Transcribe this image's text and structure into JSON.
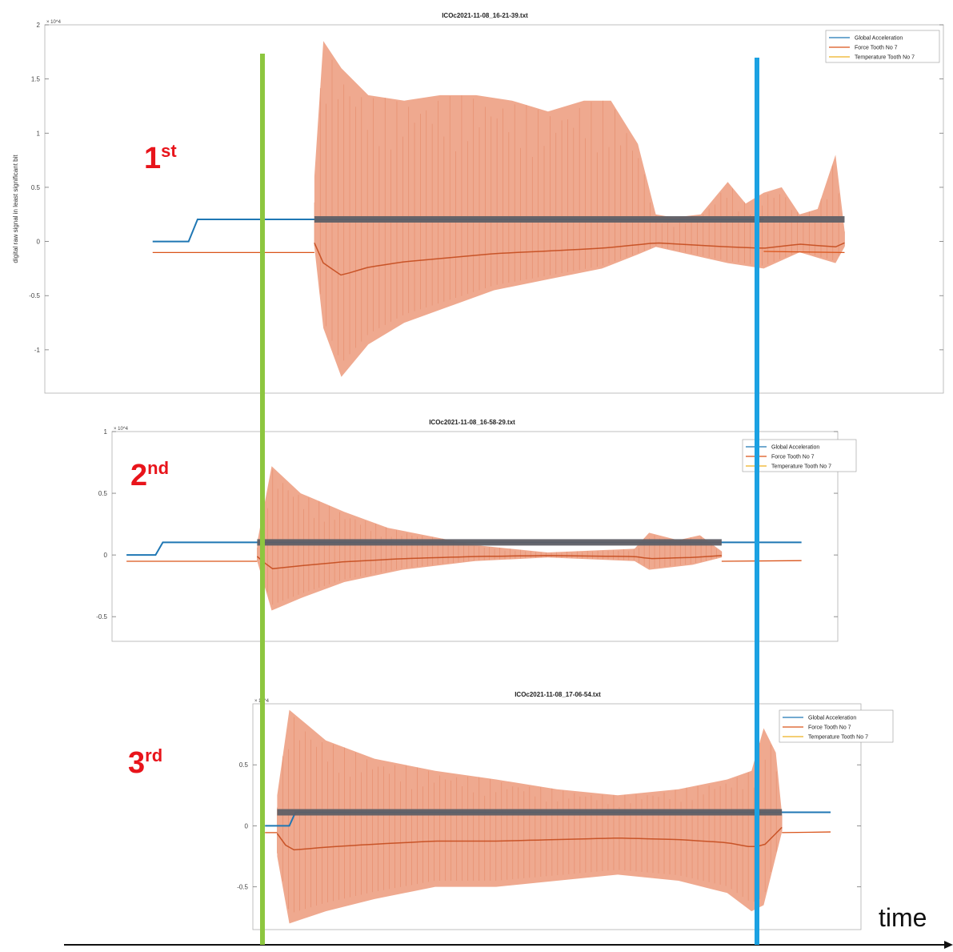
{
  "chart_data": [
    {
      "type": "line",
      "title": "ICOc2021-11-08_16-21-39.txt",
      "run_label": "1st",
      "ylabel": "digital raw signal in least significant bit",
      "exponent": "× 10^4",
      "yticks": [
        "2",
        "1.5",
        "1",
        "0.5",
        "0",
        "-0.5",
        "-1"
      ],
      "ylim": [
        -1.4,
        2.0
      ],
      "y_scale": 10000,
      "legend_position": "top-right",
      "series": [
        {
          "name": "Global Acceleration",
          "color": "#1f77b4"
        },
        {
          "name": "Force Tooth No 7",
          "color": "#d95319"
        },
        {
          "name": "Temperature Tooth No 7",
          "color": "#edb120"
        }
      ],
      "force_envelope": {
        "upper": [
          [
            0.3,
            0.6
          ],
          [
            0.31,
            1.85
          ],
          [
            0.33,
            1.6
          ],
          [
            0.36,
            1.35
          ],
          [
            0.4,
            1.3
          ],
          [
            0.44,
            1.35
          ],
          [
            0.48,
            1.35
          ],
          [
            0.52,
            1.3
          ],
          [
            0.56,
            1.2
          ],
          [
            0.6,
            1.3
          ],
          [
            0.63,
            1.3
          ],
          [
            0.66,
            0.9
          ],
          [
            0.68,
            0.25
          ],
          [
            0.7,
            0.22
          ],
          [
            0.73,
            0.25
          ],
          [
            0.76,
            0.55
          ],
          [
            0.78,
            0.35
          ],
          [
            0.8,
            0.45
          ],
          [
            0.82,
            0.5
          ],
          [
            0.84,
            0.25
          ],
          [
            0.86,
            0.3
          ],
          [
            0.88,
            0.8
          ],
          [
            0.89,
            0.1
          ]
        ],
        "lower": [
          [
            0.3,
            -0.05
          ],
          [
            0.31,
            -0.8
          ],
          [
            0.33,
            -1.25
          ],
          [
            0.36,
            -0.95
          ],
          [
            0.4,
            -0.75
          ],
          [
            0.45,
            -0.6
          ],
          [
            0.5,
            -0.45
          ],
          [
            0.56,
            -0.35
          ],
          [
            0.62,
            -0.25
          ],
          [
            0.66,
            -0.12
          ],
          [
            0.68,
            -0.05
          ],
          [
            0.76,
            -0.2
          ],
          [
            0.8,
            -0.25
          ],
          [
            0.84,
            -0.1
          ],
          [
            0.88,
            -0.2
          ],
          [
            0.89,
            -0.05
          ]
        ]
      }
    },
    {
      "type": "line",
      "title": "ICOc2021-11-08_16-58-29.txt",
      "run_label": "2nd",
      "exponent": "× 10^4",
      "yticks": [
        "1",
        "0.5",
        "0",
        "-0.5"
      ],
      "ylim": [
        -0.7,
        1.0
      ],
      "y_scale": 10000,
      "legend_position": "top-right",
      "series": [
        {
          "name": "Global Acceleration",
          "color": "#1f77b4"
        },
        {
          "name": "Force Tooth No 7",
          "color": "#d95319"
        },
        {
          "name": "Temperature Tooth No 7",
          "color": "#edb120"
        }
      ],
      "force_envelope": {
        "upper": [
          [
            0.2,
            0.1
          ],
          [
            0.22,
            0.72
          ],
          [
            0.26,
            0.5
          ],
          [
            0.32,
            0.35
          ],
          [
            0.38,
            0.22
          ],
          [
            0.44,
            0.15
          ],
          [
            0.5,
            0.08
          ],
          [
            0.6,
            0.02
          ],
          [
            0.72,
            0.05
          ],
          [
            0.74,
            0.18
          ],
          [
            0.78,
            0.12
          ],
          [
            0.81,
            0.16
          ],
          [
            0.84,
            0.03
          ]
        ],
        "lower": [
          [
            0.2,
            -0.05
          ],
          [
            0.22,
            -0.45
          ],
          [
            0.26,
            -0.35
          ],
          [
            0.32,
            -0.22
          ],
          [
            0.4,
            -0.12
          ],
          [
            0.5,
            -0.05
          ],
          [
            0.6,
            -0.02
          ],
          [
            0.72,
            -0.05
          ],
          [
            0.74,
            -0.12
          ],
          [
            0.8,
            -0.08
          ],
          [
            0.84,
            -0.02
          ]
        ]
      }
    },
    {
      "type": "line",
      "title": "ICOc2021-11-08_17-06-54.txt",
      "run_label": "3rd",
      "exponent": "× 10^4",
      "yticks": [
        "0.5",
        "0",
        "-0.5"
      ],
      "ylim": [
        -0.85,
        1.0
      ],
      "y_scale": 10000,
      "legend_position": "top-right",
      "series": [
        {
          "name": "Global Acceleration",
          "color": "#1f77b4"
        },
        {
          "name": "Force Tooth No 7",
          "color": "#d95319"
        },
        {
          "name": "Temperature Tooth No 7",
          "color": "#edb120"
        }
      ],
      "force_envelope": {
        "upper": [
          [
            0.04,
            0.25
          ],
          [
            0.06,
            0.95
          ],
          [
            0.12,
            0.7
          ],
          [
            0.2,
            0.55
          ],
          [
            0.3,
            0.45
          ],
          [
            0.4,
            0.38
          ],
          [
            0.5,
            0.3
          ],
          [
            0.6,
            0.25
          ],
          [
            0.7,
            0.3
          ],
          [
            0.78,
            0.38
          ],
          [
            0.82,
            0.45
          ],
          [
            0.84,
            0.8
          ],
          [
            0.86,
            0.6
          ],
          [
            0.87,
            0.1
          ]
        ],
        "lower": [
          [
            0.04,
            -0.25
          ],
          [
            0.06,
            -0.8
          ],
          [
            0.12,
            -0.7
          ],
          [
            0.2,
            -0.6
          ],
          [
            0.3,
            -0.5
          ],
          [
            0.4,
            -0.5
          ],
          [
            0.5,
            -0.45
          ],
          [
            0.6,
            -0.4
          ],
          [
            0.7,
            -0.45
          ],
          [
            0.78,
            -0.55
          ],
          [
            0.82,
            -0.7
          ],
          [
            0.84,
            -0.65
          ],
          [
            0.87,
            -0.05
          ]
        ]
      }
    }
  ],
  "overlay": {
    "time_label": "time",
    "start_marker_color": "#8dc63f",
    "end_marker_color": "#1ba1e2",
    "force_fill_color": "#eea285",
    "mean_band_color": "#5f5f66"
  }
}
